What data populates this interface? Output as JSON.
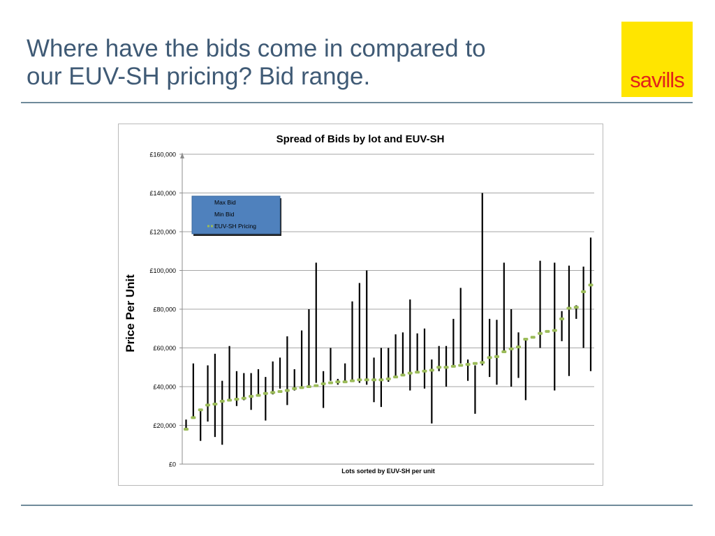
{
  "slide": {
    "title_line1": "Where have the bids come in compared to",
    "title_line2": "our EUV-SH pricing? Bid range.",
    "logo_text": "savills",
    "colors": {
      "title": "#3f5a75",
      "logo_bg": "#ffe500",
      "logo_text": "#e2231a",
      "rule": "#6f8a9a"
    }
  },
  "chart_data": {
    "type": "bar",
    "subtype": "high-low with markers",
    "title": "Spread of Bids by lot and EUV-SH",
    "xlabel": "Lots  sorted by  EUV-SH  per unit",
    "ylabel": "Price Per Unit",
    "ylim": [
      0,
      160000
    ],
    "yticks": [
      0,
      20000,
      40000,
      60000,
      80000,
      100000,
      120000,
      140000,
      160000
    ],
    "ytick_labels": [
      "£0",
      "£20,000",
      "£40,000",
      "£60,000",
      "£80,000",
      "£100,000",
      "£120,000",
      "£140,000",
      "£160,000"
    ],
    "grid": true,
    "legend_position": "top-left",
    "legend": [
      {
        "name": "Max Bid",
        "marker": "none"
      },
      {
        "name": "Min Bid",
        "marker": "none"
      },
      {
        "name": "EUV-SH Pricing",
        "marker": "green-dash"
      }
    ],
    "colors": {
      "range_line": "#000000",
      "euv_marker": "#9bbb59",
      "legend_bg": "#4f81bd",
      "grid": "#a6a6a6"
    },
    "series": [
      {
        "name": "Max Bid",
        "values": [
          23000,
          52000,
          28000,
          51000,
          57000,
          43000,
          61000,
          48000,
          47000,
          47000,
          49000,
          45000,
          53000,
          55000,
          66000,
          49000,
          69000,
          80000,
          104000,
          48000,
          60000,
          44000,
          52000,
          84000,
          93500,
          100000,
          55000,
          60000,
          60000,
          67000,
          68000,
          85000,
          67500,
          70000,
          54000,
          61000,
          61000,
          75000,
          91000,
          54000,
          51000,
          140000,
          75000,
          74500,
          104000,
          80000,
          68000,
          65000,
          65000,
          105000,
          69000,
          104000,
          79000,
          102500,
          82000,
          102000,
          117000
        ]
      },
      {
        "name": "Min Bid",
        "values": [
          18000,
          24000,
          12000,
          22000,
          14000,
          10000,
          33000,
          30000,
          33000,
          28000,
          36000,
          22500,
          36000,
          39000,
          30500,
          38000,
          40000,
          40000,
          42000,
          29000,
          43000,
          41000,
          43000,
          43000,
          42000,
          41000,
          32000,
          29500,
          42500,
          45000,
          46000,
          38000,
          48000,
          39000,
          21000,
          48000,
          40000,
          50000,
          52000,
          43000,
          26000,
          51000,
          45000,
          41000,
          58000,
          40000,
          44500,
          33000,
          65000,
          60000,
          68000,
          38000,
          63500,
          45500,
          75000,
          60000,
          48000
        ]
      },
      {
        "name": "EUV-SH Pricing",
        "values": [
          18000,
          24000,
          28000,
          30500,
          31000,
          32500,
          33000,
          33500,
          34000,
          35000,
          35500,
          36500,
          37000,
          37500,
          38000,
          39000,
          39500,
          40000,
          40500,
          41500,
          42000,
          42500,
          42500,
          43000,
          43500,
          43500,
          43500,
          43500,
          44000,
          45000,
          46000,
          47000,
          47500,
          48000,
          48500,
          50000,
          50000,
          50500,
          51000,
          51500,
          52000,
          52500,
          55000,
          55500,
          58000,
          59500,
          60500,
          64500,
          65500,
          67500,
          68500,
          69000,
          75000,
          80500,
          81000,
          89000,
          92500
        ]
      }
    ]
  }
}
